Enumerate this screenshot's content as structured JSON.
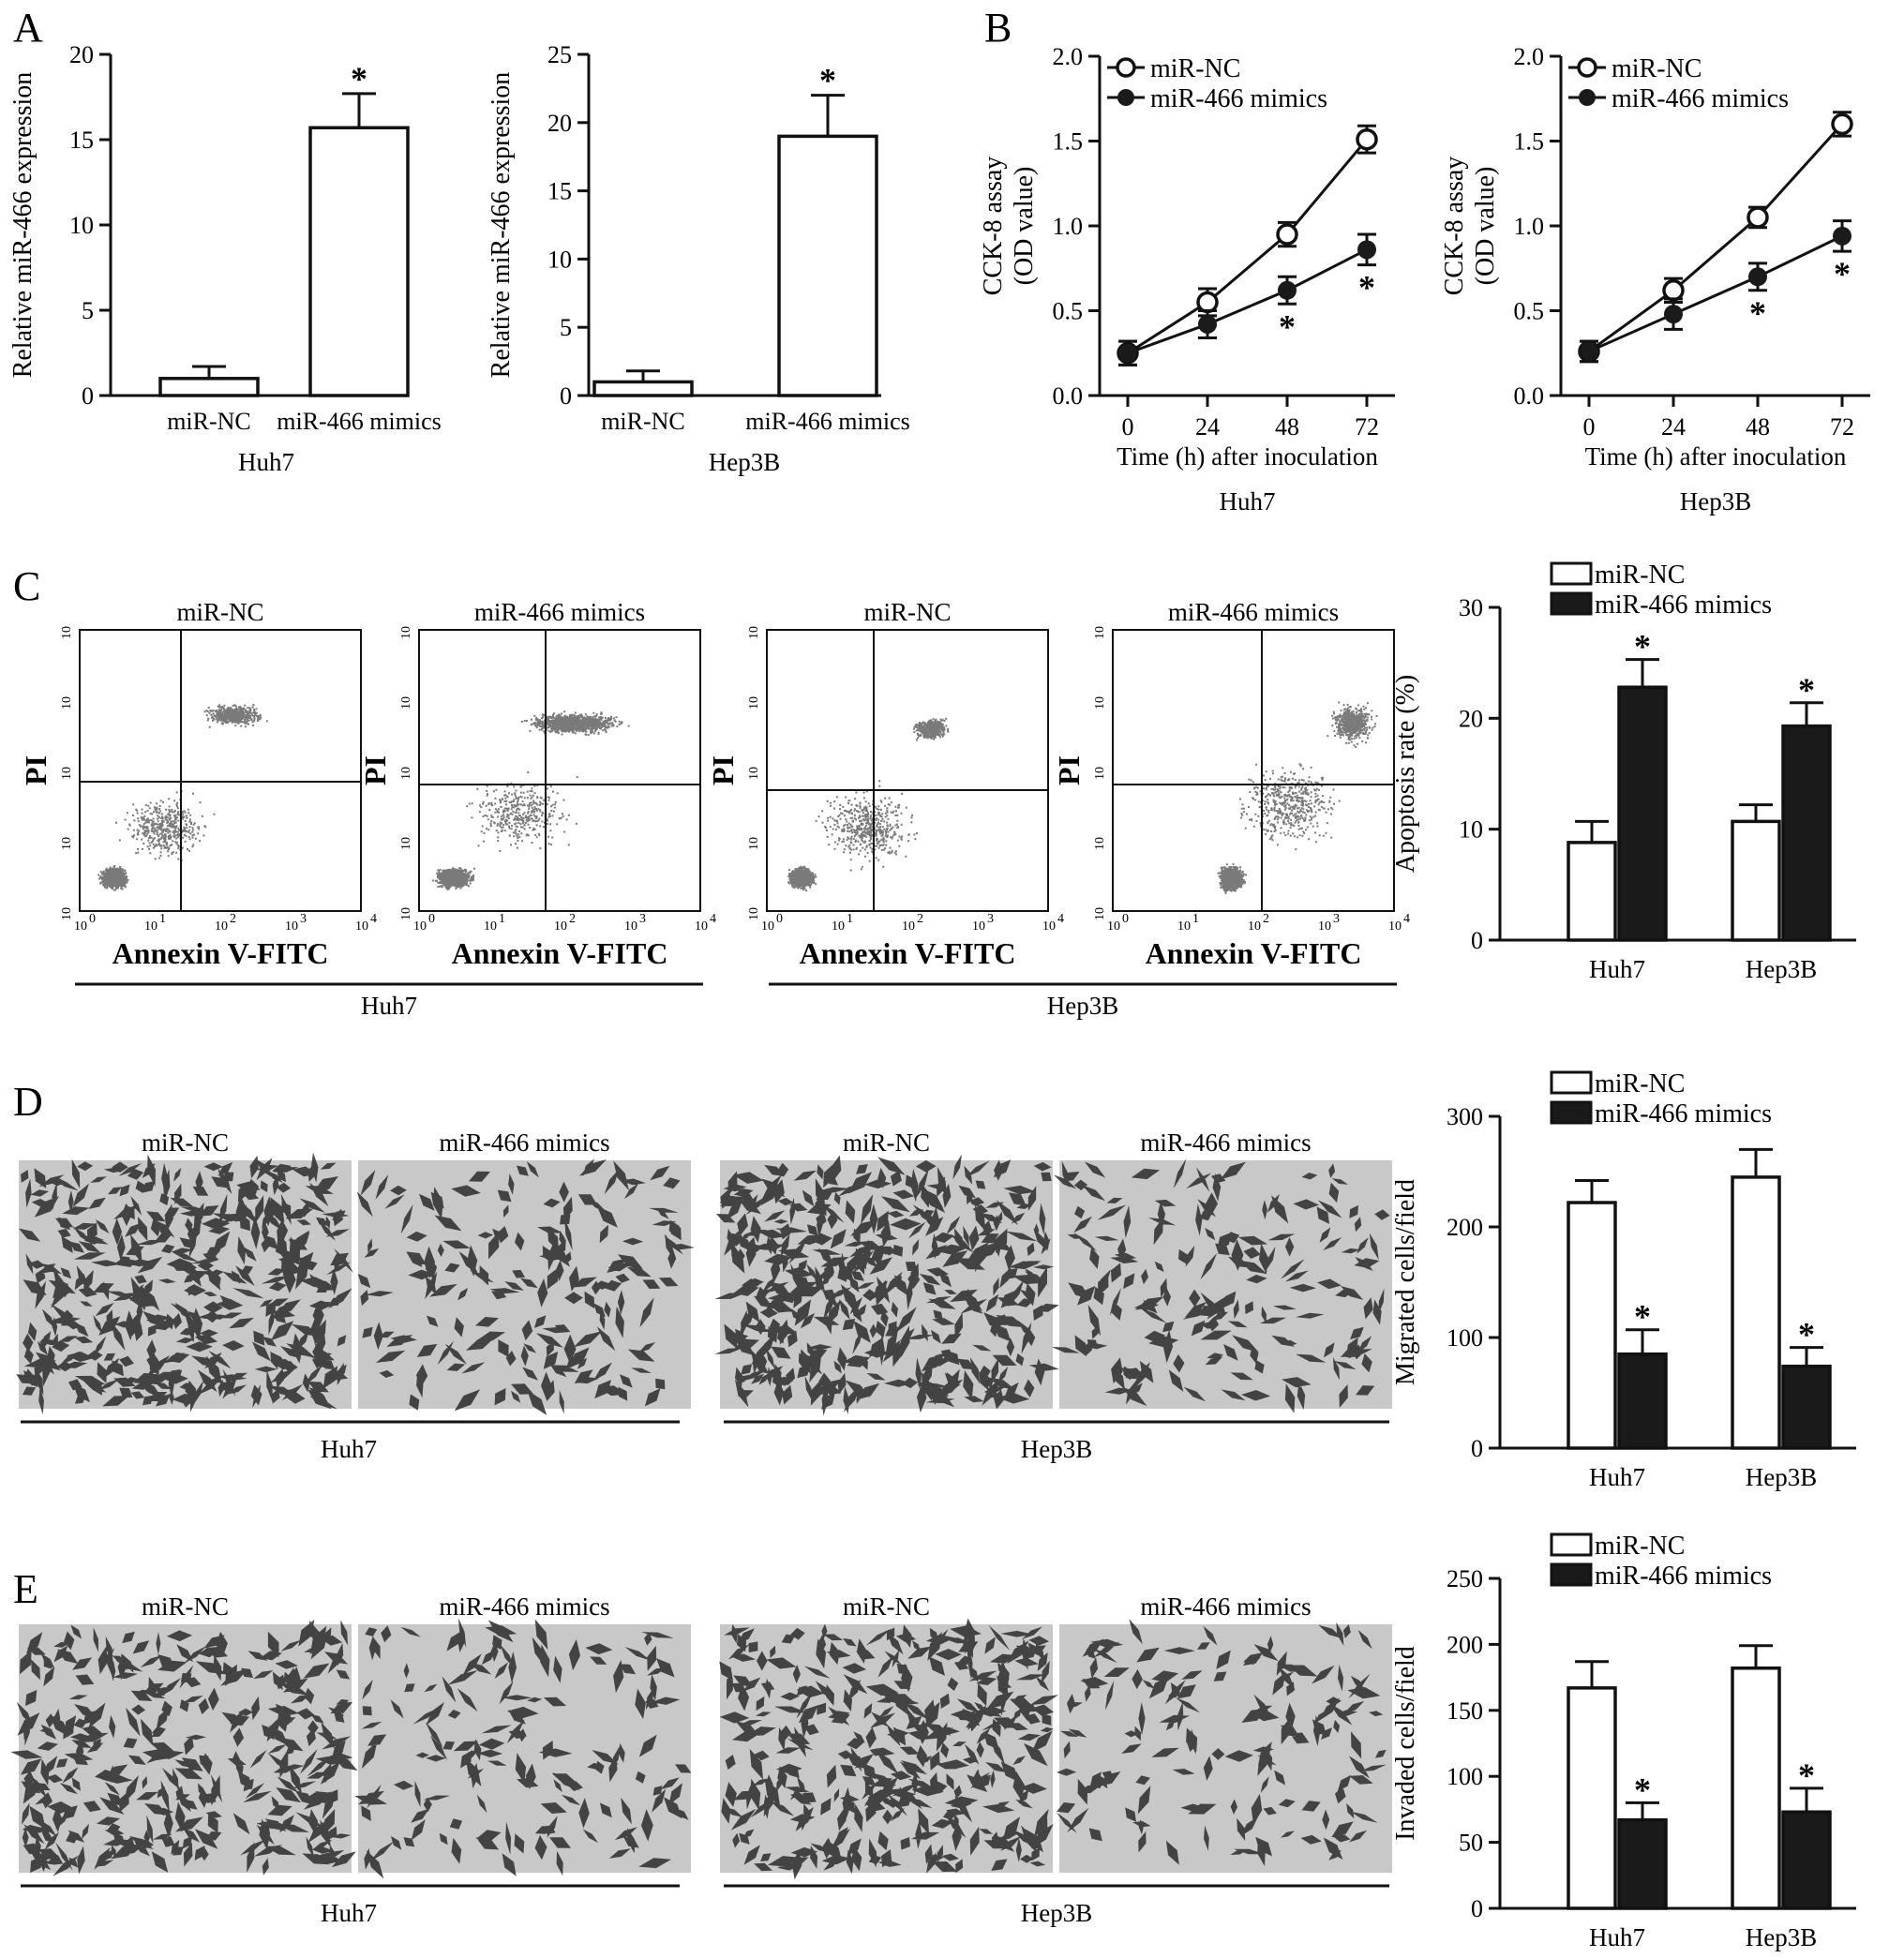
{
  "panel_letters": [
    "A",
    "B",
    "C",
    "D",
    "E"
  ],
  "colors": {
    "ink": "#111111",
    "filled": "#1a1a1a",
    "dot": "#7a7a7a",
    "micro_bg": "#c8c8c8",
    "cell": "#2b2b2b"
  },
  "cells": [
    "Huh7",
    "Hep3B"
  ],
  "legend": {
    "nc": "miR-NC",
    "mimics": "miR-466 mimics"
  },
  "significance": "*",
  "flow": {
    "x_axis": "Annexin V-FITC",
    "y_axis": "PI",
    "tick_base": "10",
    "exponents": [
      "0",
      "1",
      "2",
      "3",
      "4"
    ],
    "plots": [
      {
        "title": "miR-NC"
      },
      {
        "title": "miR-466 mimics"
      },
      {
        "title": "miR-NC"
      },
      {
        "title": "miR-466 mimics"
      }
    ]
  },
  "micrographs": {
    "D": [
      {
        "title": "miR-NC",
        "density": 0.9
      },
      {
        "title": "miR-466 mimics",
        "density": 0.35
      },
      {
        "title": "miR-NC",
        "density": 0.9
      },
      {
        "title": "miR-466 mimics",
        "density": 0.35
      }
    ],
    "E": [
      {
        "title": "miR-NC",
        "density": 0.7
      },
      {
        "title": "miR-466 mimics",
        "density": 0.3
      },
      {
        "title": "miR-NC",
        "density": 0.75
      },
      {
        "title": "miR-466 mimics",
        "density": 0.3
      }
    ]
  },
  "chart_data": [
    {
      "id": "A1",
      "type": "bar",
      "ylabel": "Relative miR-466 expression",
      "xlabel": "Huh7",
      "categories": [
        "miR-NC",
        "miR-466 mimics"
      ],
      "values": [
        1,
        15.7
      ],
      "errors": [
        0.7,
        2.0
      ],
      "ylim": [
        0,
        20
      ],
      "yticks": [
        "0",
        "5",
        "10",
        "15",
        "20"
      ],
      "sig": [
        false,
        true
      ]
    },
    {
      "id": "A2",
      "type": "bar",
      "ylabel": "Relative miR-466 expression",
      "xlabel": "Hep3B",
      "categories": [
        "miR-NC",
        "miR-466 mimics"
      ],
      "values": [
        1,
        19
      ],
      "errors": [
        0.8,
        3.0
      ],
      "ylim": [
        0,
        25
      ],
      "yticks": [
        "0",
        "5",
        "10",
        "15",
        "20",
        "25"
      ],
      "sig": [
        false,
        true
      ]
    },
    {
      "id": "B1",
      "type": "line",
      "ylabel": [
        "CCK-8 assay",
        "(OD value)"
      ],
      "xlabel": "Time (h) after inoculation",
      "caption": "Huh7",
      "x": [
        "0",
        "24",
        "48",
        "72"
      ],
      "xvals": [
        0,
        24,
        48,
        72
      ],
      "ylim": [
        0,
        2.0
      ],
      "yticks": [
        "0.0",
        "0.5",
        "1.0",
        "1.5",
        "2.0"
      ],
      "legend_position": "top-left",
      "series": [
        {
          "name": "miR-NC",
          "marker": "open",
          "values": [
            0.25,
            0.55,
            0.95,
            1.51
          ],
          "errors": [
            0.07,
            0.08,
            0.07,
            0.08
          ],
          "sig": [
            false,
            false,
            false,
            false
          ]
        },
        {
          "name": "miR-466 mimics",
          "marker": "filled",
          "values": [
            0.25,
            0.42,
            0.62,
            0.86
          ],
          "errors": [
            0.07,
            0.08,
            0.08,
            0.09
          ],
          "sig": [
            false,
            false,
            true,
            true
          ]
        }
      ]
    },
    {
      "id": "B2",
      "type": "line",
      "ylabel": [
        "CCK-8 assay",
        "(OD value)"
      ],
      "xlabel": "Time (h) after inoculation",
      "caption": "Hep3B",
      "x": [
        "0",
        "24",
        "48",
        "72"
      ],
      "xvals": [
        0,
        24,
        48,
        72
      ],
      "ylim": [
        0,
        2.0
      ],
      "yticks": [
        "0.0",
        "0.5",
        "1.0",
        "1.5",
        "2.0"
      ],
      "legend_position": "top-left",
      "series": [
        {
          "name": "miR-NC",
          "marker": "open",
          "values": [
            0.26,
            0.62,
            1.05,
            1.6
          ],
          "errors": [
            0.06,
            0.07,
            0.06,
            0.07
          ],
          "sig": [
            false,
            false,
            false,
            false
          ]
        },
        {
          "name": "miR-466 mimics",
          "marker": "filled",
          "values": [
            0.26,
            0.48,
            0.7,
            0.94
          ],
          "errors": [
            0.06,
            0.09,
            0.08,
            0.09
          ],
          "sig": [
            false,
            false,
            true,
            true
          ]
        }
      ]
    },
    {
      "id": "C",
      "type": "bar",
      "ylabel": "Apoptosis rate (%)",
      "categories": [
        "Huh7",
        "Hep3B"
      ],
      "ylim": [
        0,
        30
      ],
      "yticks": [
        "0",
        "10",
        "20",
        "30"
      ],
      "legend_position": "top",
      "series": [
        {
          "name": "miR-NC",
          "fill": "open",
          "values": [
            8.8,
            10.7
          ],
          "errors": [
            1.9,
            1.5
          ],
          "sig": [
            false,
            false
          ]
        },
        {
          "name": "miR-466 mimics",
          "fill": "filled",
          "values": [
            22.8,
            19.3
          ],
          "errors": [
            2.5,
            2.1
          ],
          "sig": [
            true,
            true
          ]
        }
      ]
    },
    {
      "id": "D",
      "type": "bar",
      "ylabel": "Migrated cells/field",
      "categories": [
        "Huh7",
        "Hep3B"
      ],
      "ylim": [
        0,
        300
      ],
      "yticks": [
        "0",
        "100",
        "200",
        "300"
      ],
      "legend_position": "top",
      "series": [
        {
          "name": "miR-NC",
          "fill": "open",
          "values": [
            222,
            245
          ],
          "errors": [
            20,
            25
          ],
          "sig": [
            false,
            false
          ]
        },
        {
          "name": "miR-466 mimics",
          "fill": "filled",
          "values": [
            85,
            74
          ],
          "errors": [
            22,
            17
          ],
          "sig": [
            true,
            true
          ]
        }
      ]
    },
    {
      "id": "E",
      "type": "bar",
      "ylabel": "Invaded cells/field",
      "categories": [
        "Huh7",
        "Hep3B"
      ],
      "ylim": [
        0,
        250
      ],
      "yticks": [
        "0",
        "50",
        "100",
        "150",
        "200",
        "250"
      ],
      "legend_position": "top",
      "series": [
        {
          "name": "miR-NC",
          "fill": "open",
          "values": [
            167,
            182
          ],
          "errors": [
            20,
            17
          ],
          "sig": [
            false,
            false
          ]
        },
        {
          "name": "miR-466 mimics",
          "fill": "filled",
          "values": [
            67,
            73
          ],
          "errors": [
            13,
            18
          ],
          "sig": [
            true,
            true
          ]
        }
      ]
    }
  ]
}
